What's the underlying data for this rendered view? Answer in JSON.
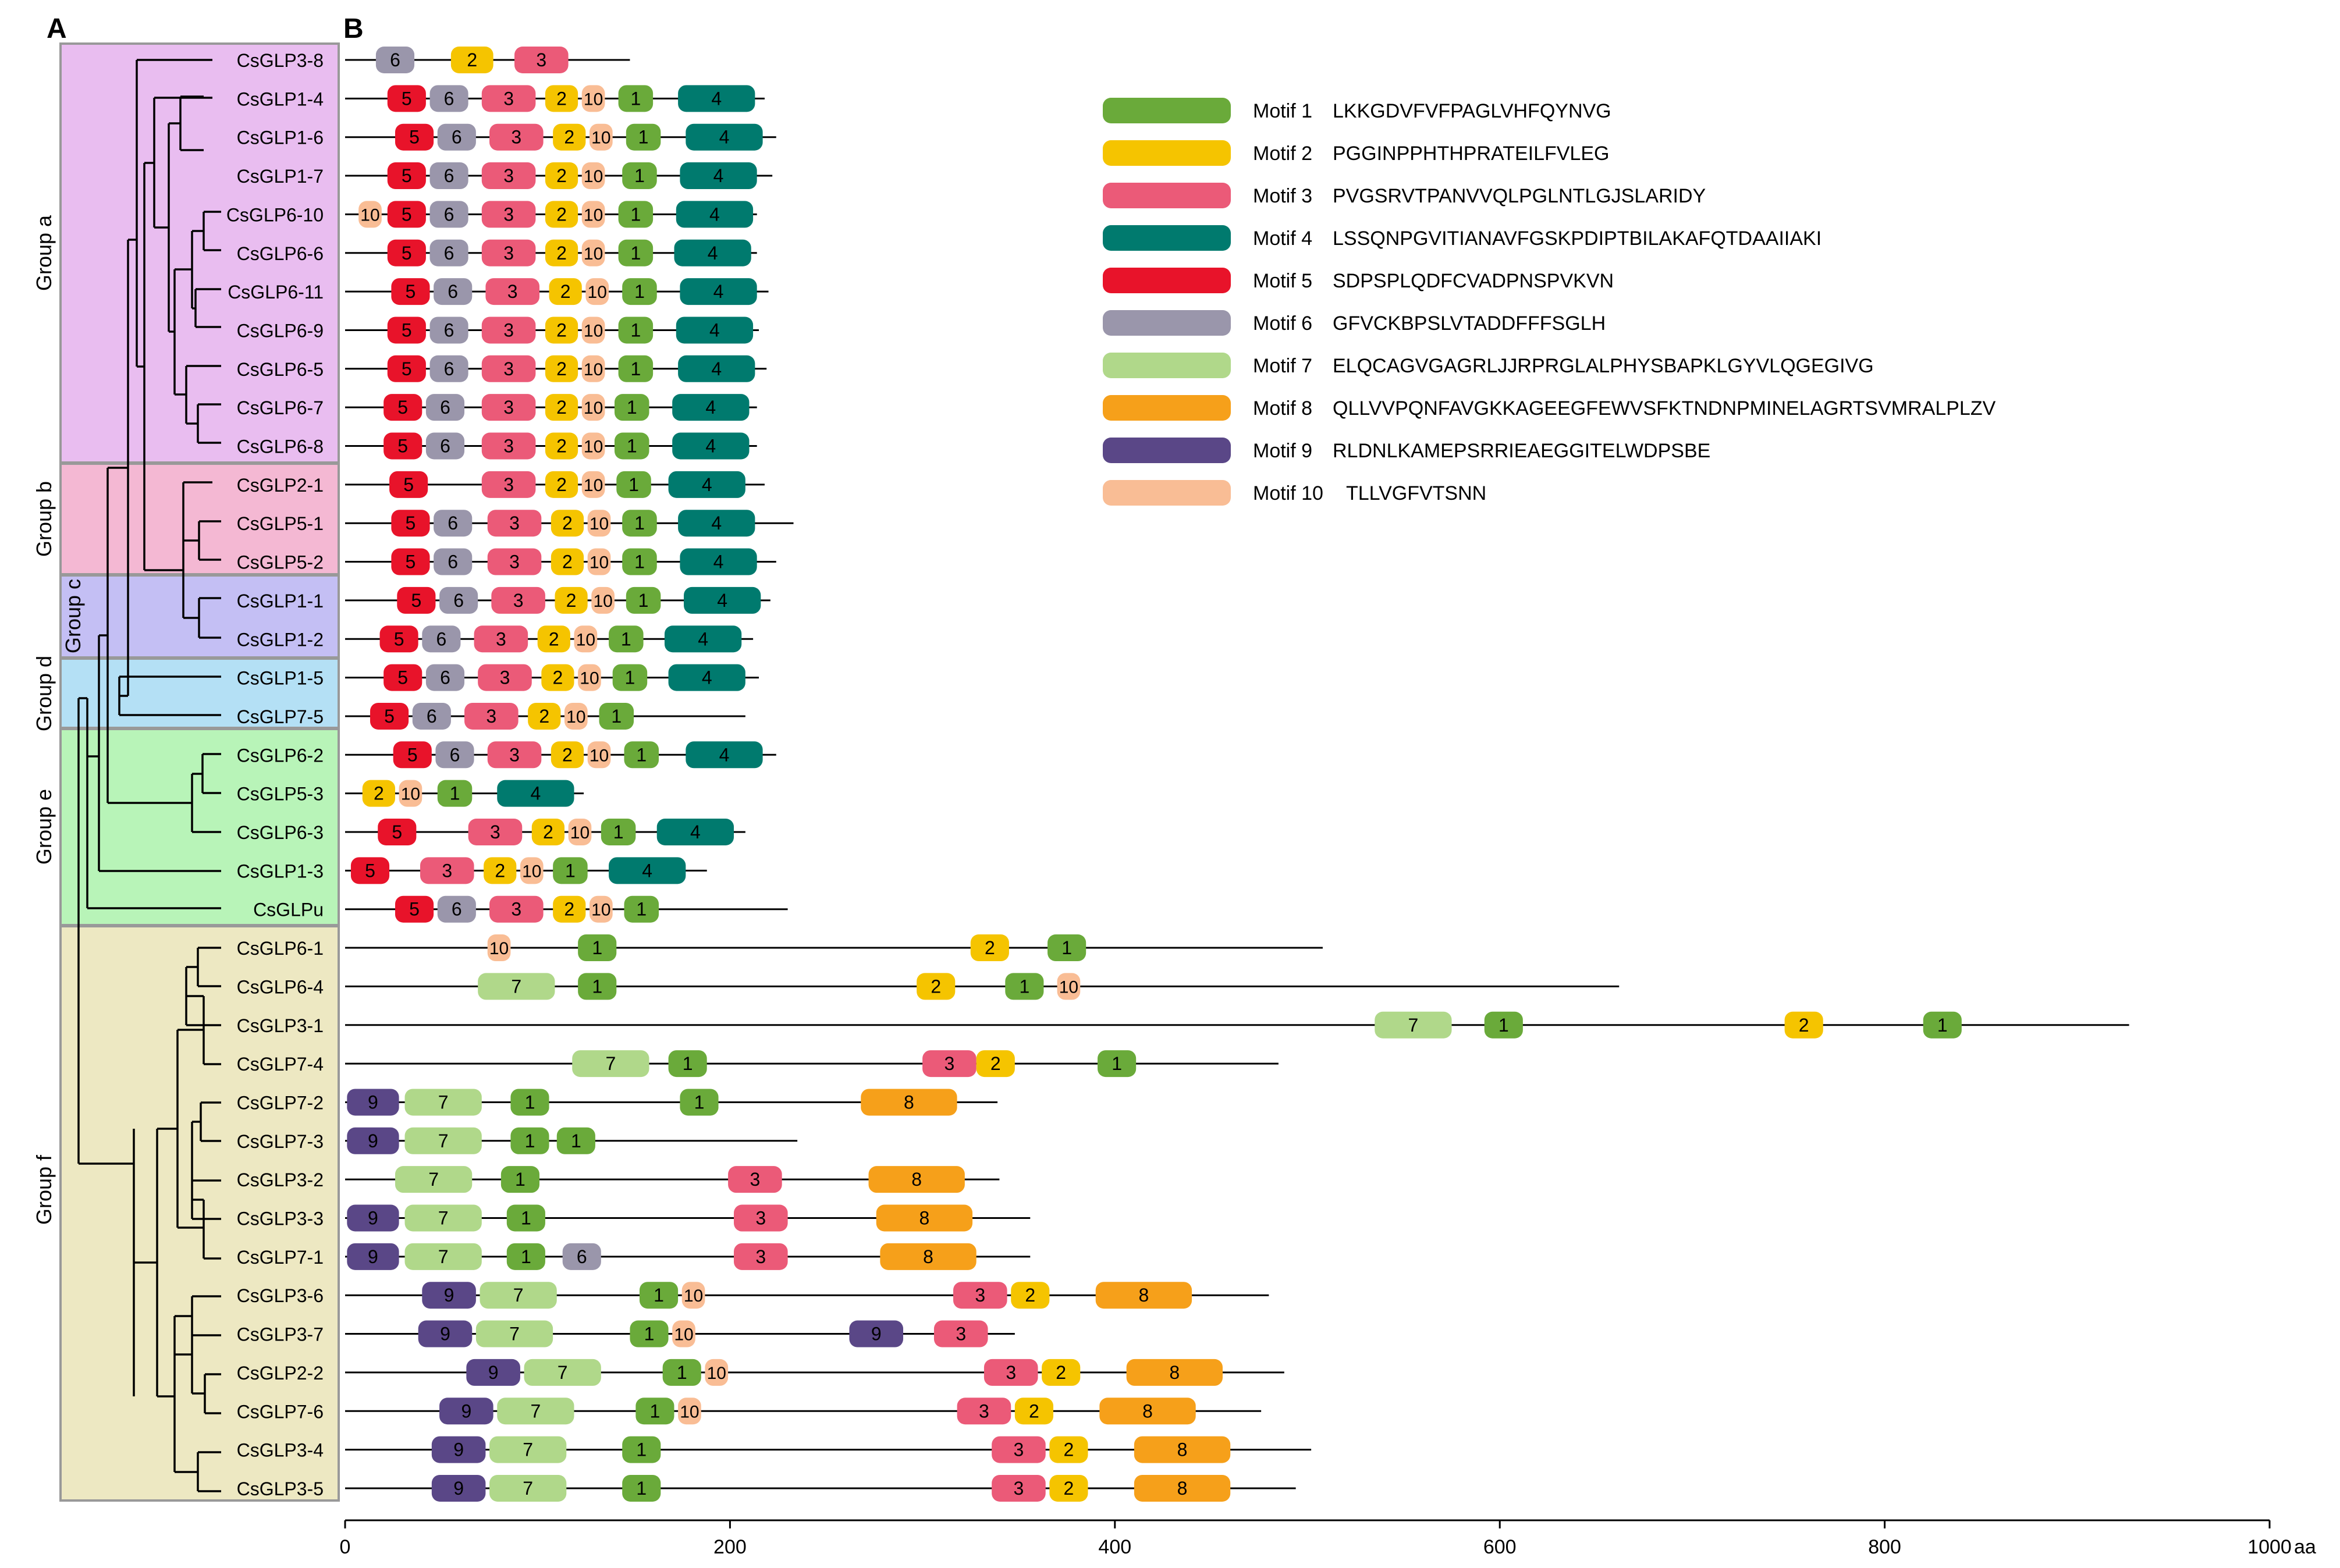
{
  "panels": {
    "a": "A",
    "b": "B"
  },
  "colors": {
    "1": "#6aaa3a",
    "2": "#f5c400",
    "3": "#eb5a78",
    "4": "#007a6e",
    "5": "#e8132a",
    "6": "#9a96ab",
    "7": "#b0d88a",
    "8": "#f6a01a",
    "9": "#5a4787",
    "10": "#f9bd95",
    "groupA": "#e9bdf0",
    "groupB": "#f4b8d3",
    "groupC": "#c4bff4",
    "groupD": "#b4e0f5",
    "groupE": "#b8f4b8",
    "groupF": "#ede8c2"
  },
  "groups": [
    {
      "label": "Group a"
    },
    {
      "label": "Group b"
    },
    {
      "label": "Group c"
    },
    {
      "label": "Group d"
    },
    {
      "label": "Group e"
    },
    {
      "label": "Group f"
    }
  ],
  "legend": [
    {
      "motif": "1",
      "name": "Motif 1",
      "seq": "LKKGDVFVFPAGLVHFQYNVG"
    },
    {
      "motif": "2",
      "name": "Motif 2",
      "seq": "PGGINPPHTHPRATEILFVLEG"
    },
    {
      "motif": "3",
      "name": "Motif 3",
      "seq": "PVGSRVTPANVVQLPGLNTLGJSLARIDY"
    },
    {
      "motif": "4",
      "name": "Motif 4",
      "seq": "LSSQNPGVITIANAVFGSKPDIPTBILAKAFQTDAAIIAKI"
    },
    {
      "motif": "5",
      "name": "Motif 5",
      "seq": "SDPSPLQDFCVADPNSPVKVN"
    },
    {
      "motif": "6",
      "name": "Motif 6",
      "seq": "GFVCKBPSLVTADDFFFSGLH"
    },
    {
      "motif": "7",
      "name": "Motif 7",
      "seq": "ELQCAGVGAGRLJJRPRGLALPHYSBAPKLGYVLQGEGIVG"
    },
    {
      "motif": "8",
      "name": "Motif 8",
      "seq": "QLLVVPQNFAVGKKAGEEGFEWVSFKTNDNPMINELAGRTSVMRALPLZV"
    },
    {
      "motif": "9",
      "name": "Motif 9",
      "seq": "RLDNLKAMEPSRRIEAEGGITELWDPSBE"
    },
    {
      "motif": "10",
      "name": "Motif 10",
      "seq": "TLLVGFVTSNN"
    }
  ],
  "axis": {
    "ticks": [
      0,
      200,
      400,
      600,
      800,
      1000
    ],
    "unit": "aa",
    "max": 1000
  },
  "genes": [
    {
      "name": "CsGLP3-8",
      "len": 148,
      "motifs": [
        [
          "6",
          16,
          36
        ],
        [
          "2",
          55,
          77
        ],
        [
          "3",
          88,
          116
        ]
      ]
    },
    {
      "name": "CsGLP1-4",
      "len": 218,
      "motifs": [
        [
          "5",
          22,
          42
        ],
        [
          "6",
          44,
          64
        ],
        [
          "3",
          71,
          99
        ],
        [
          "2",
          104,
          121
        ],
        [
          "10",
          123,
          135
        ],
        [
          "1",
          142,
          160
        ],
        [
          "4",
          173,
          213
        ]
      ]
    },
    {
      "name": "CsGLP1-6",
      "len": 224,
      "motifs": [
        [
          "5",
          26,
          46
        ],
        [
          "6",
          48,
          68
        ],
        [
          "3",
          75,
          103
        ],
        [
          "2",
          108,
          125
        ],
        [
          "10",
          127,
          139
        ],
        [
          "1",
          146,
          164
        ],
        [
          "4",
          177,
          217
        ]
      ]
    },
    {
      "name": "CsGLP1-7",
      "len": 222,
      "motifs": [
        [
          "5",
          22,
          42
        ],
        [
          "6",
          44,
          64
        ],
        [
          "3",
          71,
          99
        ],
        [
          "2",
          104,
          121
        ],
        [
          "10",
          123,
          135
        ],
        [
          "1",
          144,
          162
        ],
        [
          "4",
          174,
          214
        ]
      ]
    },
    {
      "name": "CsGLP6-10",
      "len": 214,
      "motifs": [
        [
          "10",
          7,
          19
        ],
        [
          "5",
          22,
          42
        ],
        [
          "6",
          44,
          64
        ],
        [
          "3",
          71,
          99
        ],
        [
          "2",
          104,
          121
        ],
        [
          "10",
          123,
          135
        ],
        [
          "1",
          142,
          160
        ],
        [
          "4",
          172,
          212
        ]
      ]
    },
    {
      "name": "CsGLP6-6",
      "len": 214,
      "motifs": [
        [
          "5",
          22,
          42
        ],
        [
          "6",
          44,
          64
        ],
        [
          "3",
          71,
          99
        ],
        [
          "2",
          104,
          121
        ],
        [
          "10",
          123,
          135
        ],
        [
          "1",
          142,
          160
        ],
        [
          "4",
          171,
          211
        ]
      ]
    },
    {
      "name": "CsGLP6-11",
      "len": 220,
      "motifs": [
        [
          "5",
          24,
          44
        ],
        [
          "6",
          46,
          66
        ],
        [
          "3",
          73,
          101
        ],
        [
          "2",
          106,
          123
        ],
        [
          "10",
          125,
          137
        ],
        [
          "1",
          144,
          162
        ],
        [
          "4",
          174,
          214
        ]
      ]
    },
    {
      "name": "CsGLP6-9",
      "len": 215,
      "motifs": [
        [
          "5",
          22,
          42
        ],
        [
          "6",
          44,
          64
        ],
        [
          "3",
          71,
          99
        ],
        [
          "2",
          104,
          121
        ],
        [
          "10",
          123,
          135
        ],
        [
          "1",
          142,
          160
        ],
        [
          "4",
          172,
          212
        ]
      ]
    },
    {
      "name": "CsGLP6-5",
      "len": 219,
      "motifs": [
        [
          "5",
          22,
          42
        ],
        [
          "6",
          44,
          64
        ],
        [
          "3",
          71,
          99
        ],
        [
          "2",
          104,
          121
        ],
        [
          "10",
          123,
          135
        ],
        [
          "1",
          142,
          160
        ],
        [
          "4",
          173,
          213
        ]
      ]
    },
    {
      "name": "CsGLP6-7",
      "len": 214,
      "motifs": [
        [
          "5",
          20,
          40
        ],
        [
          "6",
          42,
          62
        ],
        [
          "3",
          71,
          99
        ],
        [
          "2",
          104,
          121
        ],
        [
          "10",
          123,
          135
        ],
        [
          "1",
          140,
          158
        ],
        [
          "4",
          170,
          210
        ]
      ]
    },
    {
      "name": "CsGLP6-8",
      "len": 214,
      "motifs": [
        [
          "5",
          20,
          40
        ],
        [
          "6",
          42,
          62
        ],
        [
          "3",
          71,
          99
        ],
        [
          "2",
          104,
          121
        ],
        [
          "10",
          123,
          135
        ],
        [
          "1",
          140,
          158
        ],
        [
          "4",
          170,
          210
        ]
      ]
    },
    {
      "name": "CsGLP2-1",
      "len": 218,
      "motifs": [
        [
          "5",
          23,
          43
        ],
        [
          "3",
          71,
          99
        ],
        [
          "2",
          104,
          121
        ],
        [
          "10",
          123,
          135
        ],
        [
          "1",
          141,
          159
        ],
        [
          "4",
          168,
          208
        ]
      ]
    },
    {
      "name": "CsGLP5-1",
      "len": 233,
      "motifs": [
        [
          "5",
          24,
          44
        ],
        [
          "6",
          46,
          66
        ],
        [
          "3",
          74,
          102
        ],
        [
          "2",
          107,
          124
        ],
        [
          "10",
          126,
          138
        ],
        [
          "1",
          144,
          162
        ],
        [
          "4",
          173,
          213
        ]
      ]
    },
    {
      "name": "CsGLP5-2",
      "len": 224,
      "motifs": [
        [
          "5",
          24,
          44
        ],
        [
          "6",
          46,
          66
        ],
        [
          "3",
          74,
          102
        ],
        [
          "2",
          107,
          124
        ],
        [
          "10",
          126,
          138
        ],
        [
          "1",
          144,
          162
        ],
        [
          "4",
          174,
          214
        ]
      ]
    },
    {
      "name": "CsGLP1-1",
      "len": 221,
      "motifs": [
        [
          "5",
          27,
          47
        ],
        [
          "6",
          49,
          69
        ],
        [
          "3",
          76,
          104
        ],
        [
          "2",
          109,
          126
        ],
        [
          "10",
          128,
          140
        ],
        [
          "1",
          146,
          164
        ],
        [
          "4",
          176,
          216
        ]
      ]
    },
    {
      "name": "CsGLP1-2",
      "len": 212,
      "motifs": [
        [
          "5",
          18,
          38
        ],
        [
          "6",
          40,
          60
        ],
        [
          "3",
          67,
          95
        ],
        [
          "2",
          100,
          117
        ],
        [
          "10",
          119,
          131
        ],
        [
          "1",
          137,
          155
        ],
        [
          "4",
          166,
          206
        ]
      ]
    },
    {
      "name": "CsGLP1-5",
      "len": 215,
      "motifs": [
        [
          "5",
          20,
          40
        ],
        [
          "6",
          42,
          62
        ],
        [
          "3",
          69,
          97
        ],
        [
          "2",
          102,
          119
        ],
        [
          "10",
          121,
          133
        ],
        [
          "1",
          139,
          157
        ],
        [
          "4",
          168,
          208
        ]
      ]
    },
    {
      "name": "CsGLP7-5",
      "len": 208,
      "motifs": [
        [
          "5",
          13,
          33
        ],
        [
          "6",
          35,
          55
        ],
        [
          "3",
          62,
          90
        ],
        [
          "2",
          95,
          112
        ],
        [
          "10",
          114,
          126
        ],
        [
          "1",
          132,
          150
        ]
      ]
    },
    {
      "name": "CsGLP6-2",
      "len": 224,
      "motifs": [
        [
          "5",
          25,
          45
        ],
        [
          "6",
          47,
          67
        ],
        [
          "3",
          74,
          102
        ],
        [
          "2",
          107,
          124
        ],
        [
          "10",
          126,
          138
        ],
        [
          "1",
          145,
          163
        ],
        [
          "4",
          177,
          217
        ]
      ]
    },
    {
      "name": "CsGLP5-3",
      "len": 124,
      "motifs": [
        [
          "2",
          9,
          26
        ],
        [
          "10",
          28,
          40
        ],
        [
          "1",
          48,
          66
        ],
        [
          "4",
          79,
          119
        ]
      ]
    },
    {
      "name": "CsGLP6-3",
      "len": 208,
      "motifs": [
        [
          "5",
          17,
          37
        ],
        [
          "3",
          64,
          92
        ],
        [
          "2",
          97,
          114
        ],
        [
          "10",
          116,
          128
        ],
        [
          "1",
          133,
          151
        ],
        [
          "4",
          162,
          202
        ]
      ]
    },
    {
      "name": "CsGLP1-3",
      "len": 188,
      "motifs": [
        [
          "5",
          3,
          23
        ],
        [
          "3",
          39,
          67
        ],
        [
          "2",
          72,
          89
        ],
        [
          "10",
          91,
          103
        ],
        [
          "1",
          108,
          126
        ],
        [
          "4",
          137,
          177
        ]
      ]
    },
    {
      "name": "CsGLPu",
      "len": 230,
      "motifs": [
        [
          "5",
          26,
          46
        ],
        [
          "6",
          48,
          68
        ],
        [
          "3",
          75,
          103
        ],
        [
          "2",
          108,
          125
        ],
        [
          "10",
          127,
          139
        ],
        [
          "1",
          145,
          163
        ]
      ]
    },
    {
      "name": "CsGLP6-1",
      "len": 508,
      "motifs": [
        [
          "10",
          74,
          86
        ],
        [
          "1",
          121,
          141
        ],
        [
          "2",
          325,
          345
        ],
        [
          "1",
          365,
          385
        ]
      ]
    },
    {
      "name": "CsGLP6-4",
      "len": 662,
      "motifs": [
        [
          "7",
          69,
          109
        ],
        [
          "1",
          121,
          141
        ],
        [
          "2",
          297,
          317
        ],
        [
          "1",
          343,
          363
        ],
        [
          "10",
          370,
          382
        ]
      ]
    },
    {
      "name": "CsGLP3-1",
      "len": 927,
      "motifs": [
        [
          "7",
          535,
          575
        ],
        [
          "1",
          592,
          612
        ],
        [
          "2",
          748,
          768
        ],
        [
          "1",
          820,
          840
        ]
      ]
    },
    {
      "name": "CsGLP7-4",
      "len": 485,
      "motifs": [
        [
          "7",
          118,
          158
        ],
        [
          "1",
          168,
          188
        ],
        [
          "3",
          300,
          328
        ],
        [
          "2",
          328,
          348
        ],
        [
          "1",
          391,
          411
        ]
      ]
    },
    {
      "name": "CsGLP7-2",
      "len": 339,
      "motifs": [
        [
          "9",
          1,
          28
        ],
        [
          "7",
          31,
          71
        ],
        [
          "1",
          86,
          106
        ],
        [
          "1",
          174,
          194
        ],
        [
          "8",
          268,
          318
        ]
      ]
    },
    {
      "name": "CsGLP7-3",
      "len": 235,
      "motifs": [
        [
          "9",
          1,
          28
        ],
        [
          "7",
          31,
          71
        ],
        [
          "1",
          86,
          106
        ],
        [
          "1",
          110,
          130
        ]
      ]
    },
    {
      "name": "CsGLP3-2",
      "len": 340,
      "motifs": [
        [
          "7",
          26,
          66
        ],
        [
          "1",
          81,
          101
        ],
        [
          "3",
          199,
          227
        ],
        [
          "8",
          272,
          322
        ]
      ]
    },
    {
      "name": "CsGLP3-3",
      "len": 356,
      "motifs": [
        [
          "9",
          1,
          28
        ],
        [
          "7",
          31,
          71
        ],
        [
          "1",
          84,
          104
        ],
        [
          "3",
          202,
          230
        ],
        [
          "8",
          276,
          326
        ]
      ]
    },
    {
      "name": "CsGLP7-1",
      "len": 356,
      "motifs": [
        [
          "9",
          1,
          28
        ],
        [
          "7",
          31,
          71
        ],
        [
          "1",
          84,
          104
        ],
        [
          "6",
          113,
          133
        ],
        [
          "3",
          202,
          230
        ],
        [
          "8",
          278,
          328
        ]
      ]
    },
    {
      "name": "CsGLP3-6",
      "len": 480,
      "motifs": [
        [
          "9",
          40,
          68
        ],
        [
          "7",
          70,
          110
        ],
        [
          "1",
          153,
          173
        ],
        [
          "10",
          175,
          187
        ],
        [
          "3",
          316,
          344
        ],
        [
          "2",
          346,
          366
        ],
        [
          "8",
          390,
          440
        ]
      ]
    },
    {
      "name": "CsGLP3-7",
      "len": 348,
      "motifs": [
        [
          "9",
          38,
          66
        ],
        [
          "7",
          68,
          108
        ],
        [
          "1",
          148,
          168
        ],
        [
          "10",
          170,
          182
        ],
        [
          "9",
          262,
          290
        ],
        [
          "3",
          306,
          334
        ]
      ]
    },
    {
      "name": "CsGLP2-2",
      "len": 488,
      "motifs": [
        [
          "9",
          63,
          91
        ],
        [
          "7",
          93,
          133
        ],
        [
          "1",
          165,
          185
        ],
        [
          "10",
          187,
          199
        ],
        [
          "3",
          332,
          360
        ],
        [
          "2",
          362,
          382
        ],
        [
          "8",
          406,
          456
        ]
      ]
    },
    {
      "name": "CsGLP7-6",
      "len": 476,
      "motifs": [
        [
          "9",
          49,
          77
        ],
        [
          "7",
          79,
          119
        ],
        [
          "1",
          151,
          171
        ],
        [
          "10",
          173,
          185
        ],
        [
          "3",
          318,
          346
        ],
        [
          "2",
          348,
          368
        ],
        [
          "8",
          392,
          442
        ]
      ]
    },
    {
      "name": "CsGLP3-4",
      "len": 502,
      "motifs": [
        [
          "9",
          45,
          73
        ],
        [
          "7",
          75,
          115
        ],
        [
          "1",
          144,
          164
        ],
        [
          "3",
          336,
          364
        ],
        [
          "2",
          366,
          386
        ],
        [
          "8",
          410,
          460
        ]
      ]
    },
    {
      "name": "CsGLP3-5",
      "len": 494,
      "motifs": [
        [
          "9",
          45,
          73
        ],
        [
          "7",
          75,
          115
        ],
        [
          "1",
          144,
          164
        ],
        [
          "3",
          336,
          364
        ],
        [
          "2",
          366,
          386
        ],
        [
          "8",
          410,
          460
        ]
      ]
    }
  ]
}
